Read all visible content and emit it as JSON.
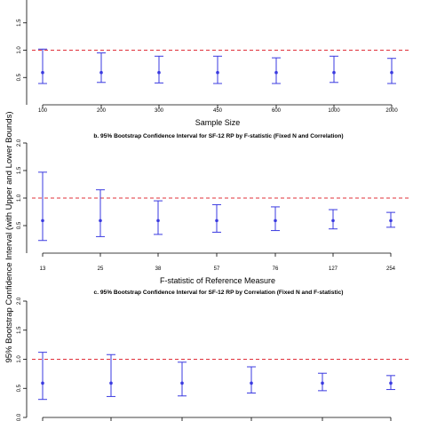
{
  "figure": {
    "y_axis_label": "95% Bootstrap Confidence Interval (with Upper and Lower Bounds)"
  },
  "colors": {
    "interval": "#3a3ae0",
    "reference_line": "#e0303a",
    "axis": "#000000"
  },
  "chart_data": [
    {
      "type": "scatter",
      "title": "",
      "xlabel": "Sample Size",
      "ylabel": "",
      "ylim": [
        0,
        2.0
      ],
      "yticks": [
        "0.5",
        "1.0",
        "1.5"
      ],
      "reference_line": 1.0,
      "categories": [
        "100",
        "200",
        "300",
        "450",
        "600",
        "1000",
        "2000"
      ],
      "estimate": [
        0.59,
        0.59,
        0.59,
        0.59,
        0.59,
        0.59,
        0.59
      ],
      "lower": [
        0.39,
        0.41,
        0.4,
        0.39,
        0.39,
        0.41,
        0.39
      ],
      "upper": [
        1.02,
        0.95,
        0.89,
        0.89,
        0.86,
        0.89,
        0.85
      ]
    },
    {
      "type": "scatter",
      "title": "b. 95% Bootstrap Confidence Interval for SF-12 RP by F-statistic (Fixed N and Correlation)",
      "xlabel": "F-statistic of Reference Measure",
      "ylabel": "",
      "ylim": [
        0,
        2.0
      ],
      "yticks": [
        "0.5",
        "1.0",
        "1.5",
        "2.0"
      ],
      "reference_line": 1.0,
      "categories": [
        "13",
        "25",
        "38",
        "57",
        "76",
        "127",
        "254"
      ],
      "estimate": [
        0.59,
        0.59,
        0.59,
        0.59,
        0.59,
        0.59,
        0.59
      ],
      "lower": [
        0.23,
        0.3,
        0.34,
        0.38,
        0.41,
        0.44,
        0.47
      ],
      "upper": [
        1.47,
        1.15,
        0.95,
        0.88,
        0.84,
        0.79,
        0.74
      ]
    },
    {
      "type": "scatter",
      "title": "c. 95% Bootstrap Confidence Interval for SF-12 RP by Correlation (Fixed N and F-statistic)",
      "xlabel": "",
      "ylabel": "",
      "ylim": [
        0,
        2.0
      ],
      "yticks": [
        "0.0",
        "0.5",
        "1.0",
        "1.5",
        "2.0"
      ],
      "reference_line": 1.0,
      "categories": [
        "",
        "",
        "",
        "",
        "",
        ""
      ],
      "estimate": [
        0.59,
        0.59,
        0.59,
        0.59,
        0.59,
        0.59
      ],
      "lower": [
        0.31,
        0.36,
        0.37,
        0.42,
        0.46,
        0.48
      ],
      "upper": [
        1.12,
        1.08,
        0.95,
        0.87,
        0.76,
        0.72
      ]
    }
  ]
}
